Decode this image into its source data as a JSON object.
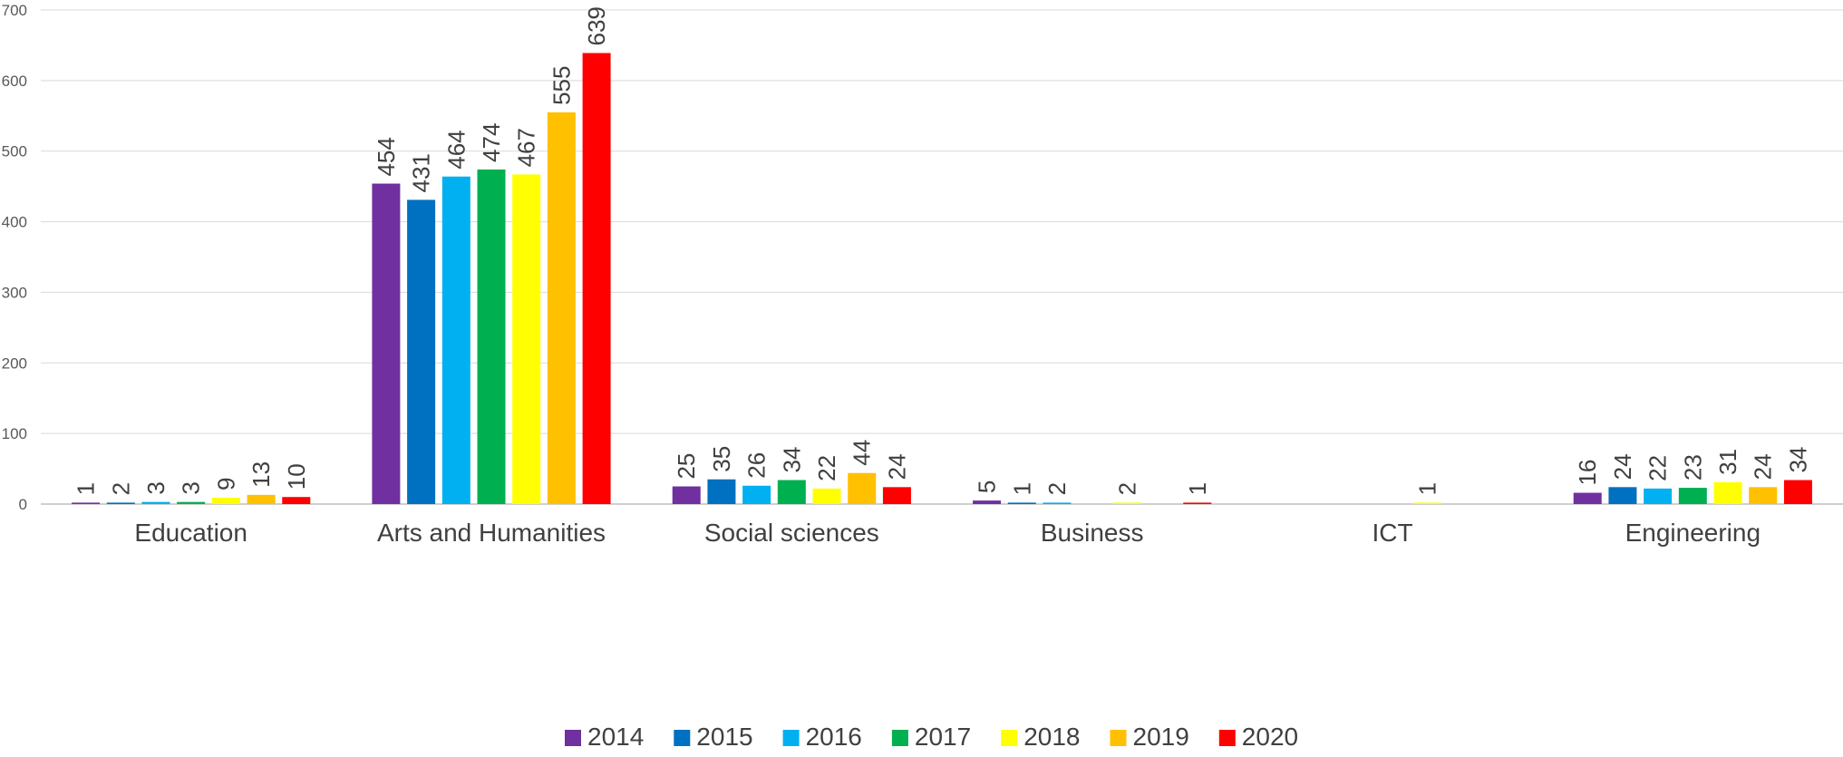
{
  "chart_data": {
    "type": "bar",
    "categories": [
      "Education",
      "Arts and Humanities",
      "Social sciences",
      "Business",
      "ICT",
      "Engineering"
    ],
    "series": [
      {
        "name": "2014",
        "color": "#7030A0",
        "values": [
          1,
          454,
          25,
          5,
          0,
          16
        ]
      },
      {
        "name": "2015",
        "color": "#0070C0",
        "values": [
          2,
          431,
          35,
          1,
          0,
          24
        ]
      },
      {
        "name": "2016",
        "color": "#00B0F0",
        "values": [
          3,
          464,
          26,
          2,
          0,
          22
        ]
      },
      {
        "name": "2017",
        "color": "#00B050",
        "values": [
          3,
          474,
          34,
          0,
          0,
          23
        ]
      },
      {
        "name": "2018",
        "color": "#FFFF00",
        "values": [
          9,
          467,
          22,
          2,
          1,
          31
        ]
      },
      {
        "name": "2019",
        "color": "#FFC000",
        "values": [
          13,
          555,
          44,
          0,
          0,
          24
        ]
      },
      {
        "name": "2020",
        "color": "#FF0000",
        "values": [
          10,
          639,
          24,
          1,
          0,
          34
        ]
      }
    ],
    "data_labels": [
      [
        "1",
        "2",
        "3",
        "3",
        "9",
        "13",
        "10"
      ],
      [
        "454",
        "431",
        "464",
        "474",
        "467",
        "555",
        "639"
      ],
      [
        "25",
        "35",
        "26",
        "34",
        "22",
        "44",
        "24"
      ],
      [
        "5",
        "1",
        "2",
        "",
        "2",
        "",
        "1"
      ],
      [
        "",
        "",
        "",
        "",
        "1",
        "",
        ""
      ],
      [
        "16",
        "24",
        "22",
        "23",
        "31",
        "24",
        "34"
      ]
    ],
    "y_ticks": [
      "0",
      "100",
      "200",
      "300",
      "400",
      "500",
      "600",
      "700"
    ],
    "ylim": [
      0,
      700
    ],
    "title": "",
    "xlabel": "",
    "ylabel": "",
    "grid": true,
    "legend_position": "bottom"
  }
}
